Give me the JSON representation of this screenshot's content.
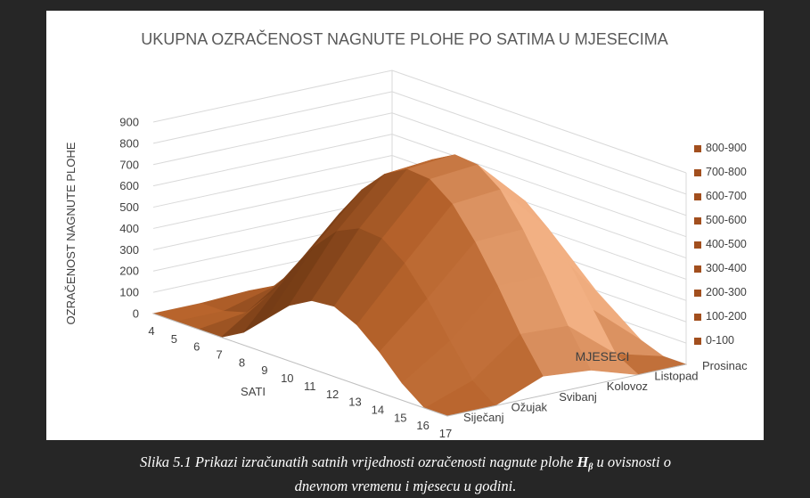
{
  "chart_data": {
    "type": "surface",
    "title": "UKUPNA OZRAČENOST NAGNUTE PLOHE PO SATIMA U MJESECIMA",
    "xlabel": "SATI",
    "ylabel": "MJESECI",
    "zlabel": "OZRAČENOST  NAGNUTE PLOHE",
    "x": [
      "4",
      "5",
      "6",
      "7",
      "8",
      "9",
      "10",
      "11",
      "12",
      "13",
      "14",
      "15",
      "16",
      "17"
    ],
    "y": [
      "Siječanj",
      "Ožujak",
      "Svibanj",
      "Kolovoz",
      "Listopad",
      "Prosinac"
    ],
    "z_ticks": [
      "0",
      "100",
      "200",
      "300",
      "400",
      "500",
      "600",
      "700",
      "800",
      "900"
    ],
    "zlim": [
      0,
      900
    ],
    "values": [
      [
        0,
        0,
        0,
        0,
        60,
        160,
        260,
        320,
        330,
        280,
        190,
        80,
        0,
        0
      ],
      [
        0,
        0,
        30,
        150,
        300,
        450,
        560,
        610,
        600,
        520,
        390,
        230,
        80,
        0
      ],
      [
        10,
        60,
        180,
        350,
        520,
        670,
        780,
        840,
        830,
        750,
        610,
        440,
        250,
        90
      ],
      [
        5,
        50,
        170,
        340,
        520,
        680,
        800,
        860,
        850,
        770,
        620,
        440,
        240,
        70
      ],
      [
        0,
        0,
        20,
        130,
        300,
        460,
        580,
        640,
        630,
        540,
        400,
        230,
        60,
        0
      ],
      [
        0,
        0,
        0,
        0,
        40,
        130,
        210,
        260,
        250,
        200,
        120,
        40,
        0,
        0
      ]
    ],
    "legend": [
      "800-900",
      "700-800",
      "600-700",
      "500-600",
      "400-500",
      "300-400",
      "200-300",
      "100-200",
      "0-100"
    ],
    "legend_position": "right",
    "colors": {
      "dark": "#6b3612",
      "mid": "#b8642c",
      "light": "#f2b083",
      "axis_text": "#404040",
      "grid": "#d9d9d9",
      "legend_swatch": "#a24f1e"
    }
  },
  "caption": {
    "prefix": "Slika 5.1 Prikazi izračunatih satnih  vrijednosti ozračenosti nagnute plohe ",
    "symbol": "H",
    "symbol_sub": "β",
    "suffix_line1": " u ovisnosti o",
    "line2": "dnevnom vremenu i mjesecu u godini."
  }
}
